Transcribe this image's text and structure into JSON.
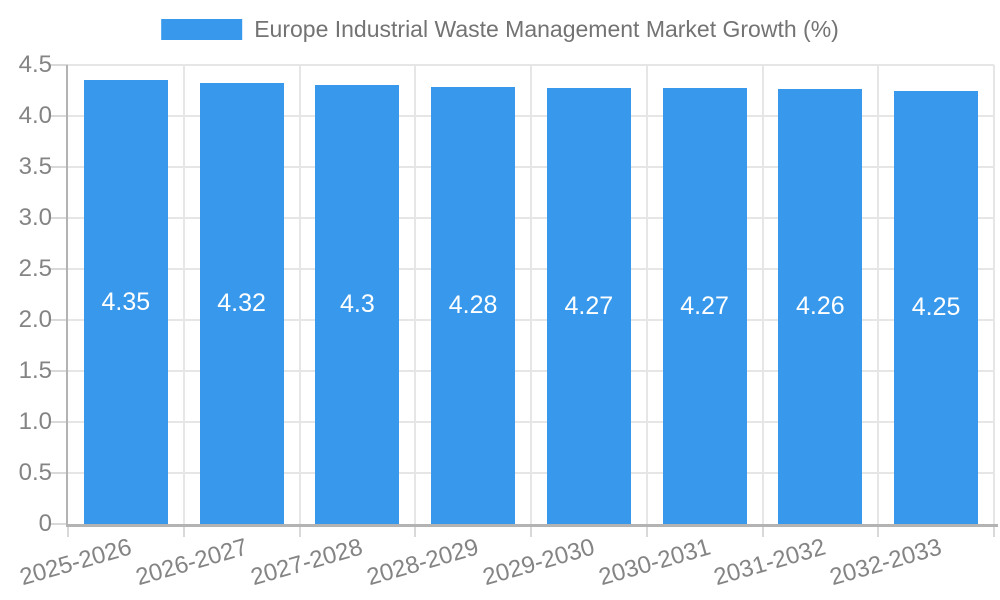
{
  "legend": {
    "position": "top",
    "label": "Europe Industrial Waste Management Market Growth (%)"
  },
  "chart_data": {
    "type": "bar",
    "title": "Europe Industrial Waste Management Market Growth (%)",
    "categories": [
      "2025-2026",
      "2026-2027",
      "2027-2028",
      "2028-2029",
      "2029-2030",
      "2030-2031",
      "2031-2032",
      "2032-2033"
    ],
    "values": [
      4.35,
      4.32,
      4.3,
      4.28,
      4.27,
      4.27,
      4.26,
      4.25
    ],
    "value_labels": [
      "4.35",
      "4.32",
      "4.3",
      "4.28",
      "4.27",
      "4.27",
      "4.26",
      "4.25"
    ],
    "xlabel": "",
    "ylabel": "",
    "ylim": [
      0,
      4.5
    ],
    "ytick_step": 0.5,
    "ytick_labels": [
      "0",
      "0.5",
      "1.0",
      "1.5",
      "2.0",
      "2.5",
      "3.0",
      "3.5",
      "4.0",
      "4.5"
    ],
    "grid": true,
    "legend_position": "top",
    "bar_color": "#3899EC",
    "bar_value_label_color": "#ffffff",
    "axis_color": "#b3b3b3",
    "grid_color": "#e6e6e6",
    "tick_label_color": "#848484",
    "title_color": "#737373",
    "background_color": "#ffffff"
  }
}
